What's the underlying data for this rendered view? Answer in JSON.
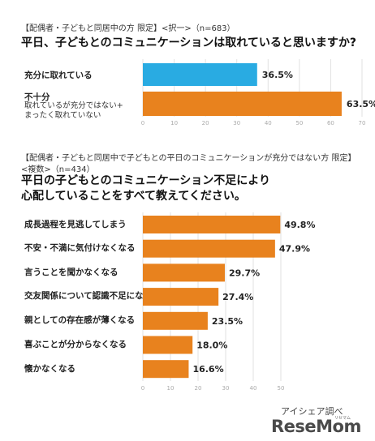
{
  "chart_data": [
    {
      "type": "bar",
      "orientation": "horizontal",
      "meta": "【配偶者・子どもと同居中の方 限定】<択一>（n=683）",
      "title": "平日、子どもとのコミュニケーションは取れていると思いますか?",
      "categories": [
        {
          "label": "充分に取れている",
          "sublabel": ""
        },
        {
          "label": "不十分",
          "sublabel": "取れているが充分ではない+\nまったく取れていない"
        }
      ],
      "values": [
        36.5,
        63.5
      ],
      "value_labels": [
        "36.5%",
        "63.5%"
      ],
      "colors": [
        "#29abe2",
        "#e8821e"
      ],
      "xlim": [
        0,
        70
      ],
      "ticks": [
        "0",
        "10",
        "20",
        "30",
        "40",
        "50",
        "60",
        "70"
      ],
      "grid": true
    },
    {
      "type": "bar",
      "orientation": "horizontal",
      "meta1": "【配偶者・子どもと同居中で子どもとの平日のコミュニケーションが充分ではない方 限定】",
      "meta2": "<複数>（n=434）",
      "title1": "平日の子どもとのコミュニケーション不足により",
      "title2": "心配していることをすべて教えてください。",
      "categories": [
        "成長過程を見逃してしまう",
        "不安・不満に気付けなくなる",
        "言うことを聞かなくなる",
        "交友関係について認識不足になる",
        "親としての存在感が薄くなる",
        "喜ぶことが分からなくなる",
        "懐かなくなる"
      ],
      "values": [
        49.8,
        47.9,
        29.7,
        27.4,
        23.5,
        18.0,
        16.6
      ],
      "value_labels": [
        "49.8%",
        "47.9%",
        "29.7%",
        "27.4%",
        "23.5%",
        "18.0%",
        "16.6%"
      ],
      "color": "#e8821e",
      "xlim": [
        0,
        50
      ],
      "ticks": [
        "0",
        "10",
        "20",
        "30",
        "40",
        "50"
      ],
      "grid": true
    }
  ],
  "footer": {
    "survey": "アイシェア調べ",
    "logo": "ReseMom",
    "logo_ruby": "リセマム"
  }
}
